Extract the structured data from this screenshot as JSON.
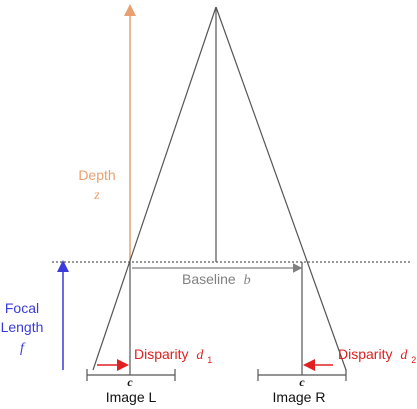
{
  "labels": {
    "depth": "Depth",
    "depth_symbol": "z",
    "focal_line1": "Focal",
    "focal_line2": "Length",
    "focal_symbol": "f",
    "baseline": "Baseline",
    "baseline_symbol": "b",
    "disparity_left": "Disparity",
    "disparity_left_symbol": "d",
    "disparity_left_sub": "1",
    "disparity_right": "Disparity",
    "disparity_right_symbol": "d",
    "disparity_right_sub": "2",
    "center_left": "c",
    "center_right": "c",
    "image_left": "Image L",
    "image_right": "Image R"
  },
  "colors": {
    "depth": "#e8a070",
    "focal": "#3b3bdc",
    "disparity": "#e02020",
    "lines": "#555555",
    "baseline_text": "#808080",
    "dashed": "#333333",
    "text": "#111111"
  }
}
